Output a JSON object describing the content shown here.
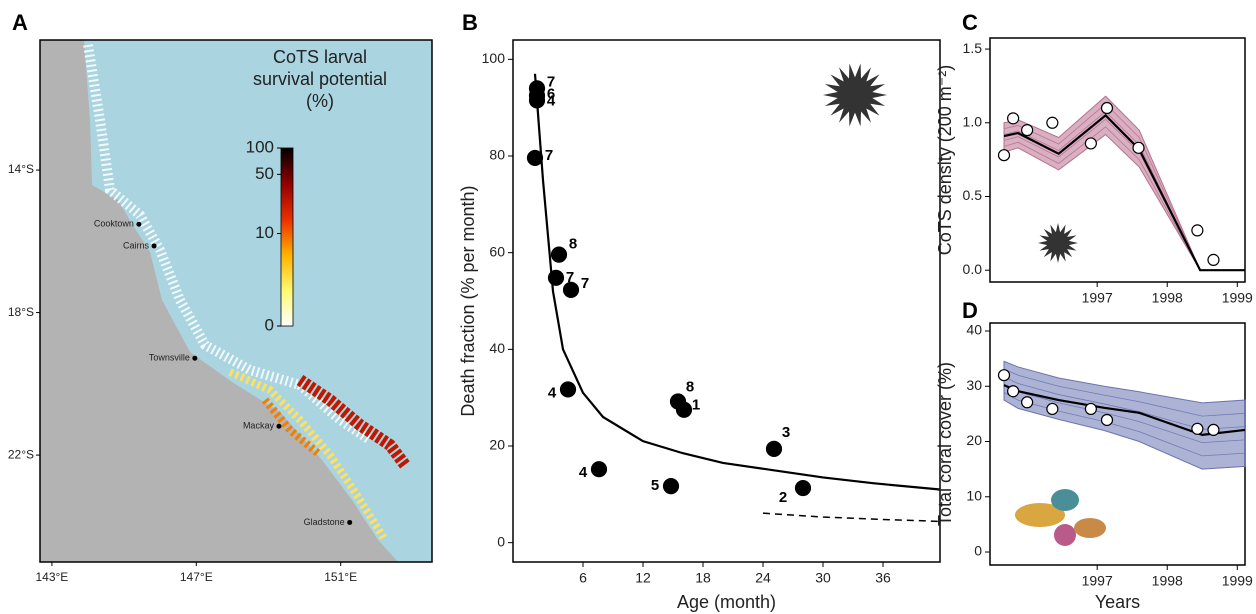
{
  "chart_data": [
    {
      "type": "map",
      "panel": "A",
      "title": [
        "CoTS larval",
        "survival potential",
        "(%)"
      ],
      "xlim": [
        142.67,
        153.53
      ],
      "ylim": [
        -25.0,
        -10.35
      ],
      "xticks": [
        {
          "value": 143,
          "label": "143°E"
        },
        {
          "value": 147,
          "label": "147°E"
        },
        {
          "value": 151,
          "label": "151°E"
        }
      ],
      "yticks": [
        {
          "value": -14,
          "label": "14°S"
        },
        {
          "value": -18,
          "label": "18°S"
        },
        {
          "value": -22,
          "label": "22°S"
        }
      ],
      "colorbar_ticks": [
        100,
        50,
        10,
        0
      ],
      "colorbar_colors": [
        "#ffffff",
        "#fff870",
        "#ffb000",
        "#e83000",
        "#900000",
        "#000000"
      ],
      "land_color": "#b3b3b3",
      "sea_color": "#a9d4e0",
      "places": [
        {
          "name": "Cooktown",
          "lon": 145.41,
          "lat": -15.52
        },
        {
          "name": "Cairns",
          "lon": 145.83,
          "lat": -16.13
        },
        {
          "name": "Townsville",
          "lon": 146.96,
          "lat": -19.28
        },
        {
          "name": "Mackay",
          "lon": 149.29,
          "lat": -21.19
        },
        {
          "name": "Gladstone",
          "lon": 151.25,
          "lat": -23.89
        }
      ]
    },
    {
      "type": "scatter",
      "panel": "B",
      "xlabel": "Age (month)",
      "ylabel": "Death fraction (% per month)",
      "xlim": [
        -1,
        41.7
      ],
      "ylim": [
        -4,
        104
      ],
      "xticks": [
        6,
        12,
        18,
        24,
        30,
        36
      ],
      "yticks": [
        0,
        20,
        40,
        60,
        80,
        100
      ],
      "series": [
        {
          "style": "points",
          "color": "#000000",
          "x": [
            1.4,
            1.4,
            1.4,
            1.2,
            3.6,
            3.3,
            4.8,
            4.5,
            7.6,
            15.5,
            16.1,
            25.1,
            14.8,
            28.0
          ],
          "values": [
            94.0,
            91.5,
            92.5,
            79.6,
            59.6,
            54.8,
            52.3,
            31.7,
            15.2,
            29.2,
            27.5,
            19.4,
            11.7,
            11.3
          ],
          "point_labels": [
            "7",
            "6",
            "4",
            "7",
            "8",
            "7",
            "7",
            "4",
            "4",
            "8",
            "1",
            "3",
            "5",
            "2"
          ]
        },
        {
          "style": "line",
          "color": "#000000",
          "x": [
            1.2,
            2,
            3,
            4,
            6,
            8,
            12,
            16,
            20,
            25,
            30,
            35,
            41.7
          ],
          "values": [
            97,
            75,
            52,
            40,
            31,
            26,
            21,
            18.5,
            16.5,
            15,
            13.5,
            12.3,
            11
          ]
        },
        {
          "style": "dashed",
          "color": "#000000",
          "x": [
            24,
            30,
            36,
            41.7
          ],
          "values": [
            6.1,
            5.3,
            4.8,
            4.4
          ]
        }
      ]
    },
    {
      "type": "line",
      "panel": "C",
      "ylabel": "CoTS density (200 m⁻²)",
      "xlim": [
        1995.47,
        1999.11
      ],
      "ylim": [
        -0.08,
        1.575
      ],
      "xticks": [
        1997,
        1998,
        1999
      ],
      "yticks": [
        {
          "value": 0,
          "label": "0.0"
        },
        {
          "value": 0.5,
          "label": "0.5"
        },
        {
          "value": 1,
          "label": "1.0"
        },
        {
          "value": 1.5,
          "label": "1.5"
        }
      ],
      "series": [
        {
          "style": "band",
          "color": "#b8708e",
          "x": [
            1995.67,
            1995.87,
            1996.45,
            1997.12,
            1997.6,
            1998.47,
            1999.11
          ],
          "lower": [
            0.8,
            0.83,
            0.68,
            0.92,
            0.7,
            0,
            0
          ],
          "upper": [
            1.0,
            1.02,
            0.9,
            1.18,
            0.95,
            0,
            0
          ]
        },
        {
          "style": "line",
          "color": "#000000",
          "x": [
            1995.67,
            1995.87,
            1996.45,
            1997.12,
            1997.6,
            1998.47,
            1999.11
          ],
          "values": [
            0.91,
            0.93,
            0.79,
            1.05,
            0.82,
            0,
            0
          ]
        },
        {
          "style": "points",
          "color": "#ffffff",
          "x": [
            1995.67,
            1995.8,
            1996.0,
            1996.36,
            1996.91,
            1997.14,
            1997.59,
            1998.43,
            1998.66
          ],
          "values": [
            0.78,
            1.03,
            0.95,
            1.0,
            0.86,
            1.1,
            0.83,
            0.27,
            0.07
          ]
        }
      ]
    },
    {
      "type": "line",
      "panel": "D",
      "xlabel": "Years",
      "ylabel": "Total coral cover (%)",
      "xlim": [
        1995.47,
        1999.11
      ],
      "ylim": [
        -2.35,
        41.45
      ],
      "xticks": [
        1997,
        1998,
        1999
      ],
      "yticks": [
        0,
        10,
        20,
        30,
        40
      ],
      "series": [
        {
          "style": "band",
          "color": "#6a74b0",
          "x": [
            1995.67,
            1995.87,
            1996.45,
            1997.1,
            1997.6,
            1998.5,
            1999.11
          ],
          "lower": [
            27.5,
            26,
            24,
            22,
            20,
            15,
            15.5
          ],
          "upper": [
            34.5,
            33.5,
            31.5,
            30,
            29,
            27,
            27.5
          ]
        },
        {
          "style": "line",
          "color": "#000000",
          "x": [
            1995.67,
            1995.87,
            1996.45,
            1997.1,
            1997.6,
            1998.5,
            1999.11
          ],
          "values": [
            30.2,
            29.1,
            27.5,
            26.1,
            25.2,
            21.2,
            22.1
          ]
        },
        {
          "style": "points",
          "color": "#ffffff",
          "x": [
            1995.67,
            1995.8,
            1996.0,
            1996.36,
            1996.91,
            1997.14,
            1998.43,
            1998.66
          ],
          "values": [
            32.0,
            29.1,
            27.1,
            25.9,
            25.9,
            23.9,
            22.3,
            22.1
          ]
        }
      ]
    }
  ]
}
